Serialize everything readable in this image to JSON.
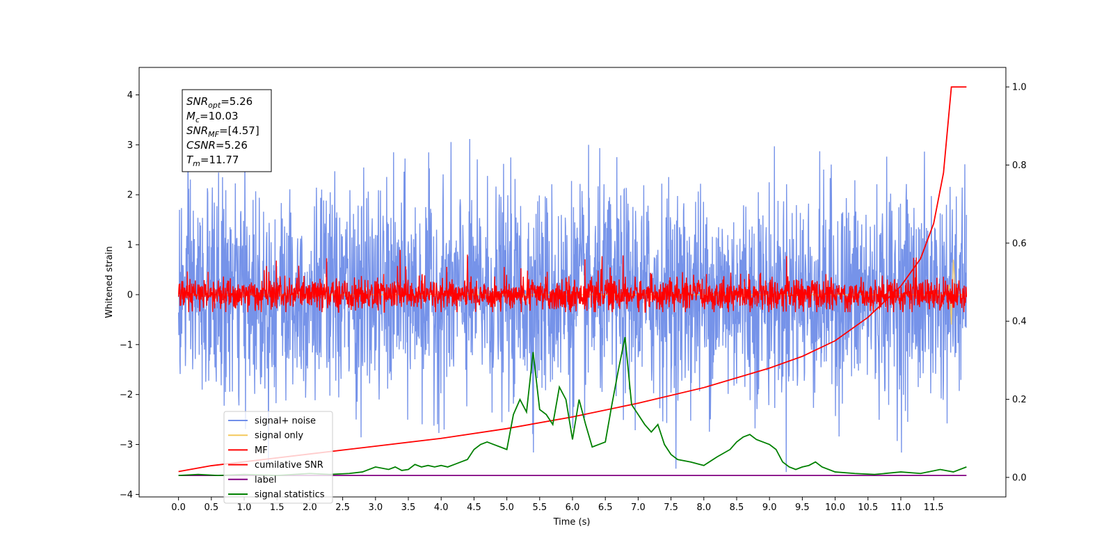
{
  "chart_data": {
    "type": "line",
    "xlabel": "Time (s)",
    "ylabel": "Whitened strain",
    "xlim": [
      -0.6,
      12.6
    ],
    "ylim": [
      -4.05,
      4.55
    ],
    "y2lim": [
      -0.05,
      1.05
    ],
    "x_ticks": [
      "0.0",
      "0.5",
      "1.0",
      "1.5",
      "2.0",
      "2.5",
      "3.0",
      "3.5",
      "4.0",
      "4.5",
      "5.0",
      "5.5",
      "6.0",
      "6.5",
      "7.0",
      "7.5",
      "8.0",
      "8.5",
      "9.0",
      "9.5",
      "10.0",
      "10.5",
      "11.0",
      "11.5"
    ],
    "y_ticks": [
      "4",
      "3",
      "2",
      "1",
      "0",
      "−1",
      "−2",
      "−3",
      "−4"
    ],
    "y2_ticks": [
      "1.0",
      "0.8",
      "0.6",
      "0.4",
      "0.2",
      "0.0"
    ],
    "annotation": [
      {
        "base": "SNR",
        "sub": "opt",
        "value": "=5.26"
      },
      {
        "base": "M",
        "sub": "c",
        "value": "=10.03"
      },
      {
        "base": "SNR",
        "sub": "MF",
        "value": "=[4.57]"
      },
      {
        "base": "CSNR",
        "sub": "",
        "value": "=5.26"
      },
      {
        "base": "T",
        "sub": "m",
        "value": "=11.77"
      }
    ],
    "series": [
      {
        "name": "signal+ noise",
        "color": "#4169e1",
        "axis": "left",
        "description_range": [
          -3.6,
          4.2
        ],
        "samples_per_second": 200
      },
      {
        "name": "signal only",
        "color": "#f4c85a",
        "axis": "left",
        "x": [
          0,
          11.7,
          11.74,
          11.77,
          11.8,
          11.84,
          12.0
        ],
        "y": [
          0,
          0,
          0.2,
          -0.6,
          0.7,
          0,
          0
        ]
      },
      {
        "name": "MF",
        "color": "#ff0000",
        "axis": "left",
        "description_range": [
          -0.35,
          1.0
        ]
      },
      {
        "name": "cumilative SNR",
        "color": "#ff0000",
        "axis": "right",
        "x": [
          0.0,
          0.5,
          1.0,
          2.0,
          3.0,
          4.0,
          5.0,
          6.0,
          7.0,
          8.0,
          9.0,
          9.5,
          10.0,
          10.5,
          11.0,
          11.3,
          11.5,
          11.65,
          11.77,
          11.78,
          12.0
        ],
        "y": [
          0.015,
          0.03,
          0.04,
          0.06,
          0.08,
          0.1,
          0.125,
          0.155,
          0.19,
          0.23,
          0.28,
          0.31,
          0.35,
          0.41,
          0.49,
          0.56,
          0.65,
          0.78,
          1.0,
          1.0,
          1.0
        ]
      },
      {
        "name": "label",
        "color": "#800080",
        "axis": "left",
        "x": [
          0.0,
          12.0
        ],
        "y": [
          -3.62,
          -3.62
        ]
      },
      {
        "name": "signal statistics",
        "color": "#008000",
        "axis": "left",
        "x": [
          0.0,
          0.3,
          0.6,
          1.0,
          1.5,
          2.0,
          2.3,
          2.6,
          2.8,
          3.0,
          3.2,
          3.3,
          3.4,
          3.5,
          3.6,
          3.7,
          3.8,
          3.9,
          4.0,
          4.1,
          4.2,
          4.3,
          4.4,
          4.5,
          4.6,
          4.7,
          4.8,
          4.9,
          5.0,
          5.1,
          5.2,
          5.3,
          5.4,
          5.5,
          5.6,
          5.7,
          5.8,
          5.9,
          6.0,
          6.1,
          6.2,
          6.3,
          6.4,
          6.5,
          6.6,
          6.7,
          6.8,
          6.9,
          7.0,
          7.1,
          7.2,
          7.3,
          7.4,
          7.5,
          7.6,
          7.8,
          8.0,
          8.2,
          8.4,
          8.5,
          8.6,
          8.7,
          8.8,
          8.9,
          9.0,
          9.1,
          9.2,
          9.3,
          9.4,
          9.5,
          9.6,
          9.7,
          9.8,
          10.0,
          10.3,
          10.6,
          11.0,
          11.3,
          11.6,
          11.8,
          12.0
        ],
        "y": [
          -3.62,
          -3.6,
          -3.62,
          -3.6,
          -3.62,
          -3.58,
          -3.6,
          -3.58,
          -3.55,
          -3.45,
          -3.5,
          -3.45,
          -3.52,
          -3.5,
          -3.4,
          -3.45,
          -3.42,
          -3.45,
          -3.42,
          -3.45,
          -3.4,
          -3.35,
          -3.3,
          -3.1,
          -3.0,
          -2.95,
          -3.0,
          -3.05,
          -3.1,
          -2.4,
          -2.1,
          -2.35,
          -1.15,
          -2.3,
          -2.4,
          -2.6,
          -1.85,
          -2.1,
          -2.9,
          -2.1,
          -2.6,
          -3.05,
          -3.0,
          -2.95,
          -2.2,
          -1.5,
          -0.85,
          -2.2,
          -2.4,
          -2.6,
          -2.75,
          -2.6,
          -3.0,
          -3.2,
          -3.3,
          -3.35,
          -3.42,
          -3.25,
          -3.1,
          -2.95,
          -2.85,
          -2.8,
          -2.9,
          -2.95,
          -3.0,
          -3.1,
          -3.35,
          -3.45,
          -3.5,
          -3.45,
          -3.42,
          -3.35,
          -3.45,
          -3.55,
          -3.58,
          -3.6,
          -3.55,
          -3.58,
          -3.5,
          -3.55,
          -3.45
        ]
      }
    ],
    "legend": {
      "placement": "lower-left",
      "entries": [
        {
          "label": "signal+ noise",
          "color": "#4169e1"
        },
        {
          "label": "signal only",
          "color": "#f4c85a"
        },
        {
          "label": "MF",
          "color": "#ff0000"
        },
        {
          "label": "cumilative SNR",
          "color": "#ff0000"
        },
        {
          "label": "label",
          "color": "#800080"
        },
        {
          "label": "signal statistics",
          "color": "#008000"
        }
      ]
    }
  }
}
